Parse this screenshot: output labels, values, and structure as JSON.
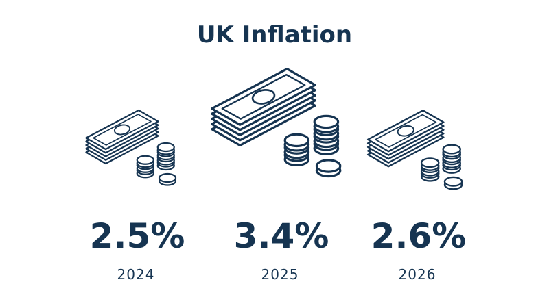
{
  "title": "UK Inflation",
  "items": [
    {
      "value": "2.5%",
      "year": "2024"
    },
    {
      "value": "3.4%",
      "year": "2025"
    },
    {
      "value": "2.6%",
      "year": "2026"
    }
  ]
}
